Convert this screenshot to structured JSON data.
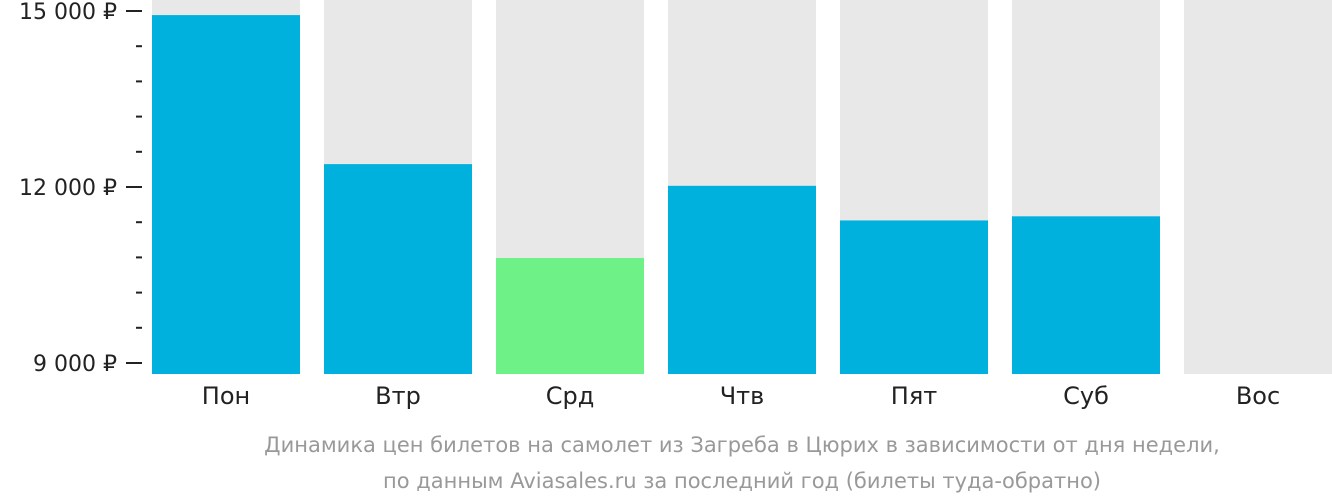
{
  "chart_data": {
    "type": "bar",
    "categories": [
      "Пон",
      "Втр",
      "Срд",
      "Чтв",
      "Пят",
      "Суб",
      "Вос"
    ],
    "values": [
      14930,
      12390,
      10790,
      12020,
      11430,
      11500,
      null
    ],
    "highlight_index": 2,
    "ylim": [
      9000,
      15000
    ],
    "yticks": [
      {
        "value": 15000,
        "label": "15 000 ₽"
      },
      {
        "value": 12000,
        "label": "12 000 ₽"
      },
      {
        "value": 9000,
        "label": "9 000 ₽"
      }
    ],
    "minor_tick_step": 600,
    "caption_lines": [
      "Динамика цен билетов на самолет из Загреба в Цюрих в зависимости от дня недели,",
      "по данным Aviasales.ru за последний год (билеты туда-обратно)"
    ],
    "colors": {
      "bar": "#00b0dd",
      "highlight": "#6ef287",
      "background_bar": "#e8e8e8",
      "axis": "#222222",
      "caption": "#999999"
    }
  }
}
